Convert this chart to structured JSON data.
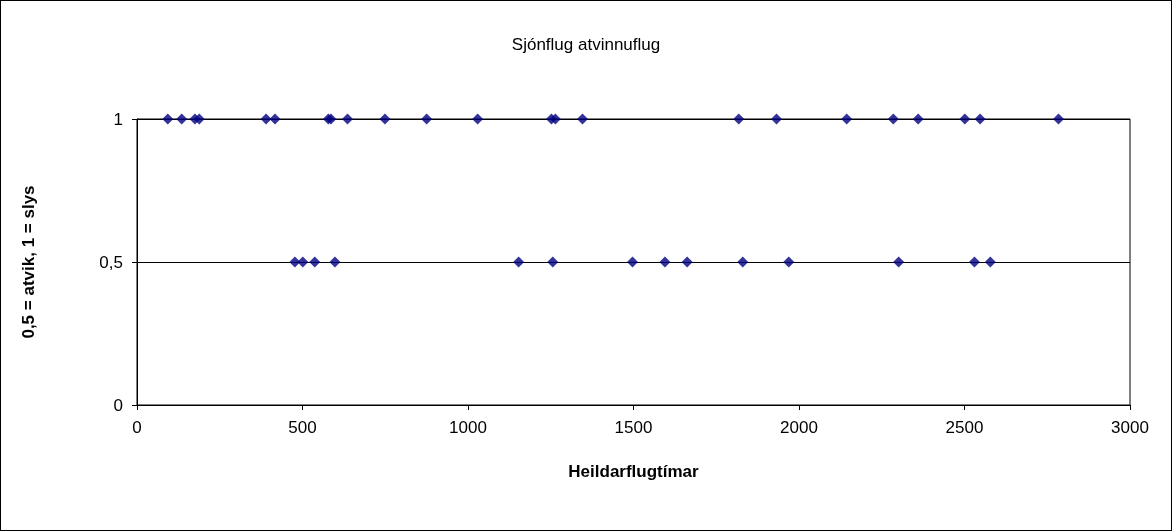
{
  "chart_data": {
    "type": "scatter",
    "title": "Sjónflug atvinnuflug",
    "xlabel": "Heildarflugtímar",
    "ylabel": "0,5 = atvik, 1 = slys",
    "series": [
      {
        "color": "#000080",
        "x": [
          93,
          135,
          175,
          188,
          390,
          417,
          578,
          586,
          636,
          749,
          875,
          1029,
          1252,
          1264,
          1346,
          1818,
          1932,
          2144,
          2285,
          2360,
          2501,
          2547,
          2784
        ],
        "values": [
          1,
          1,
          1,
          1,
          1,
          1,
          1,
          1,
          1,
          1,
          1,
          1,
          1,
          1,
          1,
          1,
          1,
          1,
          1,
          1,
          1,
          1,
          1
        ]
      },
      {
        "color": "#000080",
        "x": [
          477,
          501,
          537,
          598,
          1153,
          1256,
          1497,
          1595,
          1662,
          1830,
          1969,
          2301,
          2530,
          2578
        ],
        "values": [
          0.5,
          0.5,
          0.5,
          0.5,
          0.5,
          0.5,
          0.5,
          0.5,
          0.5,
          0.5,
          0.5,
          0.5,
          0.5,
          0.5
        ]
      }
    ],
    "xlim": [
      0,
      3000
    ],
    "xticks": [
      0,
      500,
      1000,
      1500,
      2000,
      2500,
      3000
    ],
    "ylim": [
      0,
      1
    ],
    "yticks": [
      0,
      {
        "value": 0.5,
        "label": "0,5"
      },
      1
    ],
    "grid": "y",
    "marker": "diamond"
  }
}
